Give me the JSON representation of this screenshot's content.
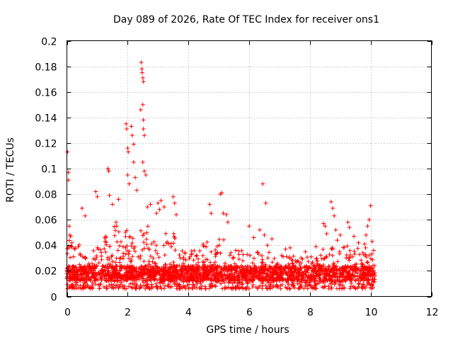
{
  "chart_data": {
    "type": "scatter",
    "title": "Day 089 of 2026, Rate Of TEC Index for receiver ons1",
    "xlabel": "GPS time / hours",
    "ylabel": "ROTI / TECUs",
    "xlim": [
      0,
      12
    ],
    "ylim": [
      0,
      0.2
    ],
    "xticks": [
      "0",
      "2",
      "4",
      "6",
      "8",
      "10",
      "12"
    ],
    "yticks": [
      "0",
      "0.02",
      "0.04",
      "0.06",
      "0.08",
      "0.1",
      "0.12",
      "0.14",
      "0.16",
      "0.18",
      "0.2"
    ],
    "grid": true,
    "marker": "+",
    "color": "#ff0000",
    "data_range_hours": [
      0,
      10.15
    ],
    "series": [
      {
        "name": "ROTI",
        "points": [
          [
            0.02,
            0.113
          ],
          [
            0.05,
            0.097
          ],
          [
            0.05,
            0.091
          ],
          [
            0.08,
            0.055
          ],
          [
            0.1,
            0.048
          ],
          [
            0.5,
            0.069
          ],
          [
            0.6,
            0.063
          ],
          [
            0.95,
            0.082
          ],
          [
            1.0,
            0.078
          ],
          [
            1.35,
            0.1
          ],
          [
            1.38,
            0.098
          ],
          [
            1.4,
            0.079
          ],
          [
            1.5,
            0.072
          ],
          [
            1.62,
            0.058
          ],
          [
            1.7,
            0.076
          ],
          [
            1.95,
            0.135
          ],
          [
            1.97,
            0.131
          ],
          [
            2.0,
            0.116
          ],
          [
            2.02,
            0.113
          ],
          [
            2.0,
            0.095
          ],
          [
            2.05,
            0.088
          ],
          [
            2.12,
            0.133
          ],
          [
            2.15,
            0.126
          ],
          [
            2.2,
            0.119
          ],
          [
            2.2,
            0.105
          ],
          [
            2.25,
            0.093
          ],
          [
            2.3,
            0.083
          ],
          [
            2.45,
            0.183
          ],
          [
            2.47,
            0.178
          ],
          [
            2.48,
            0.175
          ],
          [
            2.5,
            0.171
          ],
          [
            2.52,
            0.168
          ],
          [
            2.43,
            0.146
          ],
          [
            2.5,
            0.15
          ],
          [
            2.52,
            0.138
          ],
          [
            2.52,
            0.131
          ],
          [
            2.55,
            0.126
          ],
          [
            2.5,
            0.105
          ],
          [
            2.55,
            0.098
          ],
          [
            2.6,
            0.095
          ],
          [
            2.65,
            0.07
          ],
          [
            2.75,
            0.072
          ],
          [
            2.95,
            0.065
          ],
          [
            3.0,
            0.073
          ],
          [
            3.05,
            0.068
          ],
          [
            3.1,
            0.075
          ],
          [
            3.2,
            0.07
          ],
          [
            3.5,
            0.078
          ],
          [
            3.55,
            0.073
          ],
          [
            3.6,
            0.064
          ],
          [
            4.7,
            0.072
          ],
          [
            4.75,
            0.065
          ],
          [
            5.05,
            0.08
          ],
          [
            5.1,
            0.081
          ],
          [
            5.15,
            0.065
          ],
          [
            5.25,
            0.064
          ],
          [
            5.3,
            0.058
          ],
          [
            6.0,
            0.055
          ],
          [
            6.15,
            0.046
          ],
          [
            6.35,
            0.052
          ],
          [
            6.45,
            0.088
          ],
          [
            6.5,
            0.048
          ],
          [
            6.55,
            0.073
          ],
          [
            6.6,
            0.04
          ],
          [
            6.75,
            0.045
          ],
          [
            7.2,
            0.037
          ],
          [
            7.35,
            0.038
          ],
          [
            7.85,
            0.035
          ],
          [
            8.2,
            0.039
          ],
          [
            8.45,
            0.057
          ],
          [
            8.5,
            0.055
          ],
          [
            8.55,
            0.049
          ],
          [
            8.7,
            0.074
          ],
          [
            8.75,
            0.069
          ],
          [
            8.8,
            0.063
          ],
          [
            8.85,
            0.052
          ],
          [
            8.9,
            0.044
          ],
          [
            9.0,
            0.048
          ],
          [
            9.25,
            0.058
          ],
          [
            9.3,
            0.054
          ],
          [
            9.45,
            0.047
          ],
          [
            9.6,
            0.042
          ],
          [
            9.8,
            0.041
          ],
          [
            9.85,
            0.048
          ],
          [
            9.9,
            0.055
          ],
          [
            9.95,
            0.06
          ],
          [
            10.0,
            0.071
          ],
          [
            10.05,
            0.043
          ],
          [
            10.1,
            0.036
          ]
        ]
      }
    ]
  }
}
